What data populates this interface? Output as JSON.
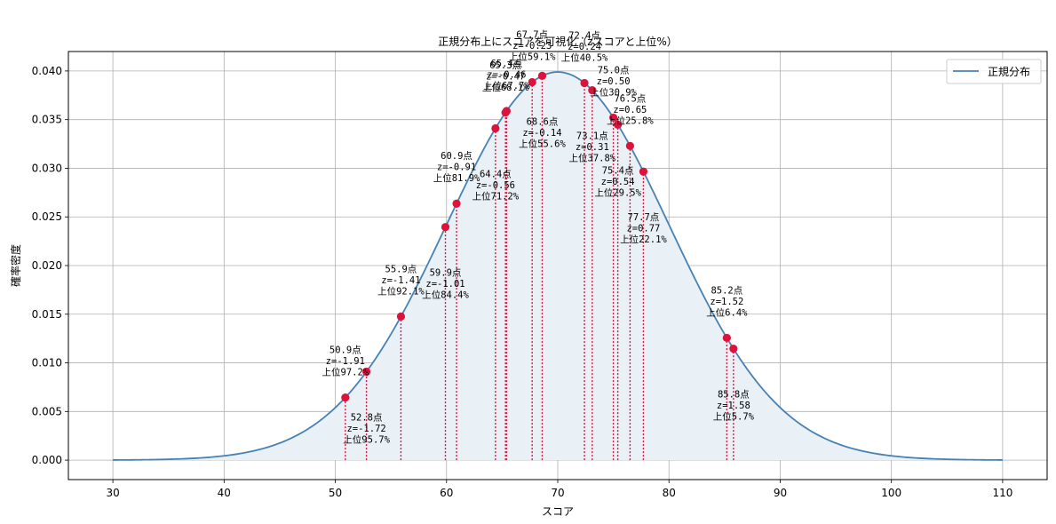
{
  "chart_data": {
    "type": "line",
    "title": "正規分布上にスコアを可視化（zスコアと上位%）",
    "xlabel": "スコア",
    "ylabel": "確率密度",
    "xlim": [
      26,
      114
    ],
    "ylim": [
      -0.002,
      0.042
    ],
    "xticks": [
      30,
      40,
      50,
      60,
      70,
      80,
      90,
      100,
      110
    ],
    "yticks": [
      0.0,
      0.005,
      0.01,
      0.015,
      0.02,
      0.025,
      0.03,
      0.035,
      0.04
    ],
    "ytick_labels": [
      "0.000",
      "0.005",
      "0.010",
      "0.015",
      "0.020",
      "0.025",
      "0.030",
      "0.035",
      "0.040"
    ],
    "grid": true,
    "legend_position": "top-right",
    "curve": {
      "name": "正規分布",
      "mean": 70,
      "sd": 10,
      "x_range": [
        30,
        110
      ],
      "color": "#4682b4",
      "fill_color": "#e9f0f6"
    },
    "marker_color": "#dc143c",
    "points": [
      {
        "x": 50.9,
        "label": "50.9点",
        "z": "z=-1.91",
        "top": "上位97.2%",
        "pos": "above"
      },
      {
        "x": 52.8,
        "label": "52.8点",
        "z": "z=-1.72",
        "top": "上位95.7%",
        "pos": "below"
      },
      {
        "x": 55.9,
        "label": "55.9点",
        "z": "z=-1.41",
        "top": "上位92.1%",
        "pos": "above"
      },
      {
        "x": 59.9,
        "label": "59.9点",
        "z": "z=-1.01",
        "top": "上位84.4%",
        "pos": "below"
      },
      {
        "x": 60.9,
        "label": "60.9点",
        "z": "z=-0.91",
        "top": "上位81.9%",
        "pos": "above"
      },
      {
        "x": 64.4,
        "label": "64.4点",
        "z": "z=-0.56",
        "top": "上位71.2%",
        "pos": "below"
      },
      {
        "x": 65.3,
        "label": "65.3点",
        "z": "z=-0.47",
        "top": "上位68.1%",
        "pos": "above"
      },
      {
        "x": 65.4,
        "label": "65.4点",
        "z": "z=-0.46",
        "top": "上位67.7%",
        "pos": "above"
      },
      {
        "x": 67.7,
        "label": "67.7点",
        "z": "z=-0.23",
        "top": "上位59.1%",
        "pos": "above"
      },
      {
        "x": 68.6,
        "label": "68.6点",
        "z": "z=-0.14",
        "top": "上位55.6%",
        "pos": "below"
      },
      {
        "x": 72.4,
        "label": "72.4点",
        "z": "z=0.24",
        "top": "上位40.5%",
        "pos": "above"
      },
      {
        "x": 73.1,
        "label": "73.1点",
        "z": "z=0.31",
        "top": "上位37.8%",
        "pos": "below"
      },
      {
        "x": 75.0,
        "label": "75.0点",
        "z": "z=0.50",
        "top": "上位30.9%",
        "pos": "above"
      },
      {
        "x": 75.4,
        "label": "75.4点",
        "z": "z=0.54",
        "top": "上位29.5%",
        "pos": "below"
      },
      {
        "x": 76.5,
        "label": "76.5点",
        "z": "z=0.65",
        "top": "上位25.8%",
        "pos": "above"
      },
      {
        "x": 77.7,
        "label": "77.7点",
        "z": "z=0.77",
        "top": "上位22.1%",
        "pos": "below"
      },
      {
        "x": 85.2,
        "label": "85.2点",
        "z": "z=1.52",
        "top": "上位6.4%",
        "pos": "above"
      },
      {
        "x": 85.8,
        "label": "85.8点",
        "z": "z=1.58",
        "top": "上位5.7%",
        "pos": "below"
      }
    ]
  }
}
